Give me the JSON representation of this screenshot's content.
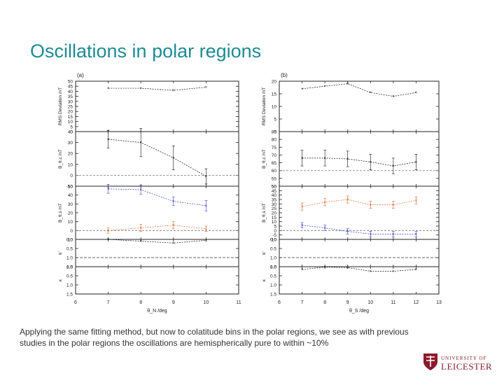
{
  "slide": {
    "title": "Oscillations in polar regions",
    "caption": "Applying the same fitting method, but now to colatitude bins in the polar regions, we see as with previous studies in the polar regions the oscillations are hemispherically pure to within ~10%"
  },
  "logo": {
    "line1": "UNIVERSITY OF",
    "line2": "LEICESTER"
  },
  "colors": {
    "title": "#1e8b94",
    "black": "#111111",
    "blue": "#3a3ad0",
    "orange": "#e0672a",
    "dash": "#777777",
    "logo": "#8b1a2b"
  },
  "chart_data": [
    {
      "label": "(a)",
      "type": "line",
      "xlabel": "θ_N /deg",
      "xlim": [
        6,
        11
      ],
      "xticks": [
        "6",
        "7",
        "8",
        "9",
        "10",
        "11"
      ],
      "x": [
        7,
        8,
        9,
        10
      ],
      "panels": [
        {
          "ylabel": "RMS Deviation /nT",
          "ylim": [
            0,
            50
          ],
          "yticks": [
            "0",
            "5",
            "10",
            "15",
            "20",
            "25",
            "30",
            "35",
            "40",
            "45",
            "50"
          ],
          "series": [
            {
              "name": "RMS",
              "color": "black",
              "values": [
                43,
                43,
                41,
                44
              ]
            }
          ]
        },
        {
          "ylabel": "B_θ,c /nT",
          "ylim": [
            -10,
            40
          ],
          "yticks": [
            "-10",
            "0",
            "10",
            "20",
            "30",
            "40"
          ],
          "zero_line": 0,
          "series": [
            {
              "name": "B_theta_c",
              "color": "black",
              "values": [
                33,
                30,
                16,
                -1
              ],
              "errors": [
                8,
                13,
                11,
                7
              ]
            }
          ]
        },
        {
          "ylabel": "B_θ,s /nT",
          "ylim": [
            -10,
            50
          ],
          "yticks": [
            "-10",
            "0",
            "10",
            "20",
            "30",
            "40",
            "50"
          ],
          "zero_line": 0,
          "series": [
            {
              "name": "B_theta_s_blue",
              "color": "blue",
              "values": [
                47,
                46,
                33,
                28
              ],
              "errors": [
                5,
                5,
                5,
                6
              ]
            },
            {
              "name": "B_theta_s_orange",
              "color": "orange",
              "values": [
                0,
                3,
                6,
                2
              ],
              "errors": [
                3,
                4,
                4,
                3
              ]
            }
          ]
        },
        {
          "ylabel": "k'",
          "ylim": [
            0,
            1.5
          ],
          "yticks": [
            "0.0",
            "0.5",
            "1.0",
            "1.5"
          ],
          "inverted": true,
          "ref_line": 1.0,
          "series": [
            {
              "name": "k_prime",
              "color": "black",
              "values": [
                0.0,
                0.1,
                0.2,
                0.05
              ]
            }
          ]
        },
        {
          "ylabel": "κ",
          "ylim": [
            0,
            1.5
          ],
          "yticks": [
            "0.0",
            "0.5",
            "1.0",
            "1.5"
          ],
          "inverted": true,
          "series": []
        }
      ]
    },
    {
      "label": "(b)",
      "type": "line",
      "xlabel": "θ_S /deg",
      "xlim": [
        6,
        13
      ],
      "xticks": [
        "6",
        "7",
        "8",
        "9",
        "10",
        "11",
        "12",
        "13"
      ],
      "x": [
        7,
        8,
        9,
        10,
        11,
        12
      ],
      "panels": [
        {
          "ylabel": "RMS Deviation /nT",
          "ylim": [
            0,
            20
          ],
          "yticks": [
            "0",
            "5",
            "10",
            "15",
            "20"
          ],
          "series": [
            {
              "name": "RMS",
              "color": "black",
              "values": [
                17,
                18,
                19,
                15.5,
                14,
                15.5
              ]
            }
          ]
        },
        {
          "ylabel": "B_θ,c /nT",
          "ylim": [
            50,
            85
          ],
          "yticks": [
            "50",
            "55",
            "60",
            "65",
            "70",
            "75",
            "80",
            "85"
          ],
          "zero_line": 60,
          "series": [
            {
              "name": "B_theta_c",
              "color": "black",
              "values": [
                68,
                68,
                67.5,
                65.5,
                63,
                65.5
              ],
              "errors": [
                5,
                5,
                5,
                5,
                5,
                5
              ]
            }
          ]
        },
        {
          "ylabel": "B_θ,s /nT",
          "ylim": [
            -10,
            50
          ],
          "yticks": [
            "-10",
            "-5",
            "0",
            "5",
            "10",
            "15",
            "20",
            "25",
            "30",
            "35",
            "40",
            "45",
            "50"
          ],
          "zero_line": 0,
          "series": [
            {
              "name": "B_theta_s_orange",
              "color": "orange",
              "values": [
                27,
                32,
                35,
                29,
                29,
                34
              ],
              "errors": [
                4,
                4,
                4,
                4,
                4,
                4
              ]
            },
            {
              "name": "B_theta_s_blue",
              "color": "blue",
              "values": [
                6,
                3,
                -1,
                -4,
                -4,
                -4
              ],
              "errors": [
                3,
                3,
                3,
                3,
                3,
                3
              ]
            }
          ]
        },
        {
          "ylabel": "k'",
          "ylim": [
            0,
            1.5
          ],
          "yticks": [
            "0.0",
            "0.5",
            "1.0",
            "1.5"
          ],
          "inverted": true,
          "ref_line": 1.0,
          "series": []
        },
        {
          "ylabel": "κ",
          "ylim": [
            0,
            1.5
          ],
          "yticks": [
            "0.0",
            "0.5",
            "1.0",
            "1.5"
          ],
          "inverted": true,
          "series": [
            {
              "name": "kappa",
              "color": "black",
              "values": [
                0.15,
                0.02,
                0.05,
                0.25,
                0.25,
                0.15
              ]
            }
          ]
        }
      ]
    }
  ]
}
